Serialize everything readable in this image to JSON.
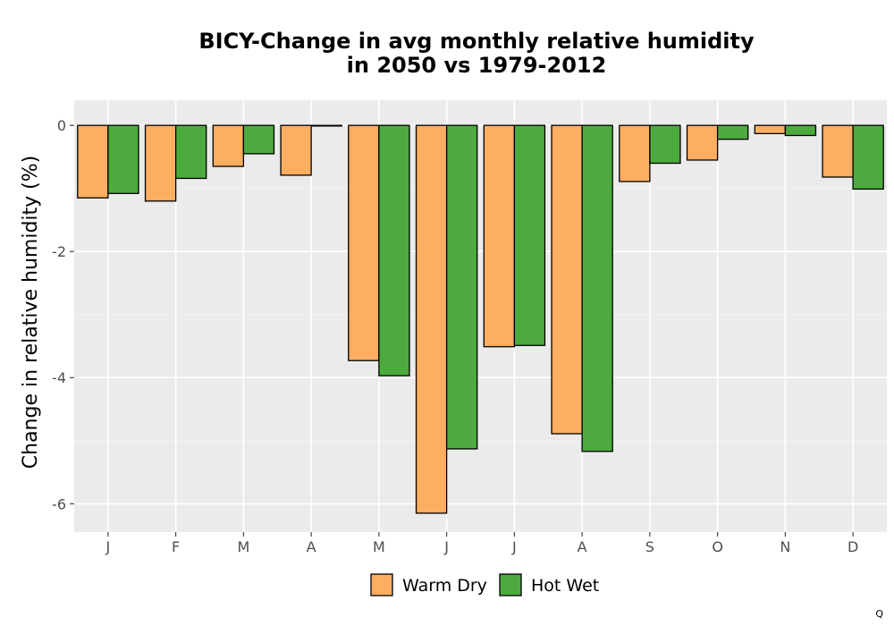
{
  "chart_data": {
    "type": "bar",
    "title_line1": "BICY-Change in avg monthly relative humidity",
    "title_line2": "in 2050 vs 1979-2012",
    "xlabel": "",
    "ylabel": "Change in relative humidity (%)",
    "categories": [
      "J",
      "F",
      "M",
      "A",
      "M",
      "J",
      "J",
      "A",
      "S",
      "O",
      "N",
      "D"
    ],
    "series": [
      {
        "name": "Warm Dry",
        "color": "#FDAE61",
        "values": [
          -1.15,
          -1.2,
          -0.65,
          -0.79,
          -3.73,
          -6.15,
          -3.51,
          -4.89,
          -0.89,
          -0.55,
          -0.13,
          -0.82
        ]
      },
      {
        "name": "Hot Wet",
        "color": "#4DAA3F",
        "values": [
          -1.08,
          -0.84,
          -0.45,
          -0.01,
          -3.97,
          -5.13,
          -3.49,
          -5.17,
          -0.6,
          -0.22,
          -0.16,
          -1.01
        ]
      }
    ],
    "yticks": [
      0,
      -2,
      -4,
      -6
    ],
    "ylim": [
      -6.45,
      0.4
    ],
    "grid": true,
    "legend_position": "bottom",
    "panel_color": "#EBEBEB",
    "corner_mark": "Q"
  }
}
